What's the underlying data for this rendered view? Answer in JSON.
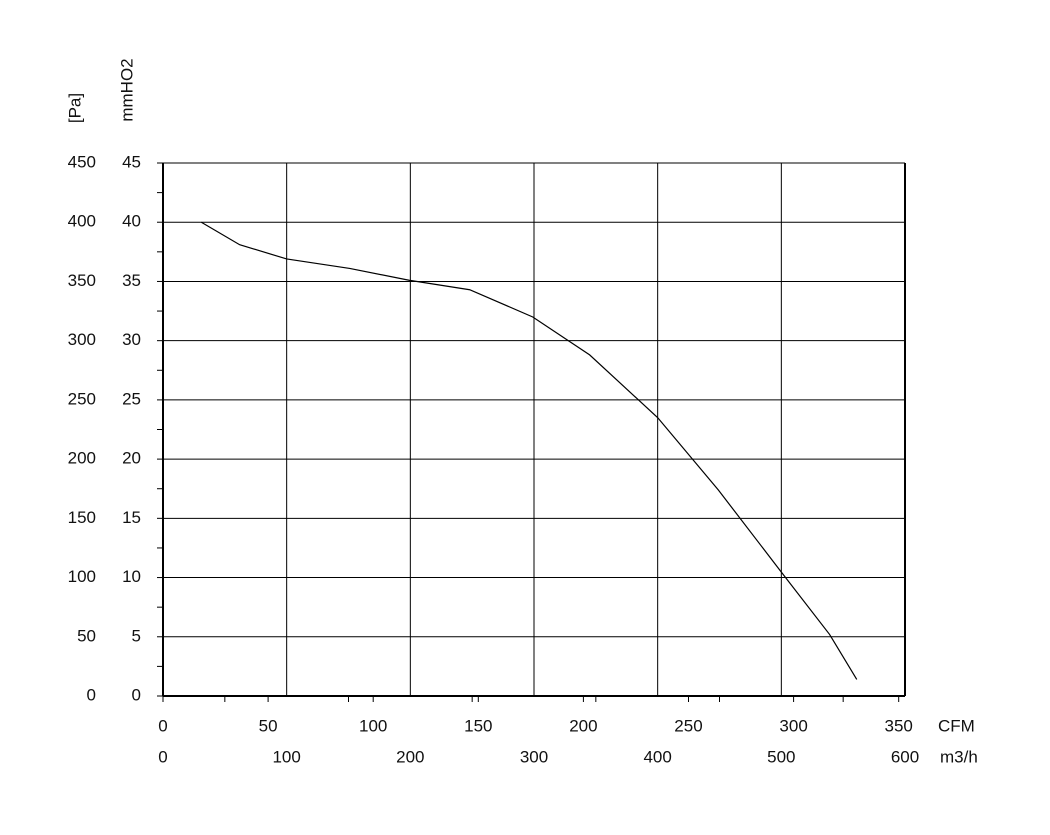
{
  "chart_data": {
    "type": "line",
    "y_label": "mmHO2",
    "y2_label": "[Pa]",
    "x_label": "m3/h",
    "x2_label": "CFM",
    "x": [
      31,
      62,
      100,
      151,
      199,
      248,
      299,
      345,
      400,
      449,
      499,
      539,
      561
    ],
    "series": [
      {
        "color": "#000000",
        "values": [
          40.0,
          38.1,
          36.9,
          36.1,
          35.1,
          34.3,
          32.0,
          28.8,
          23.5,
          17.4,
          10.6,
          5.2,
          1.4
        ]
      }
    ],
    "xlim": [
      0,
      600
    ],
    "xticks": [
      0,
      100,
      200,
      300,
      400,
      500,
      600
    ],
    "x2lim": [
      0,
      353
    ],
    "x2ticks": [
      0,
      50,
      100,
      150,
      200,
      250,
      300,
      350
    ],
    "ylim": [
      0,
      45
    ],
    "yticks": [
      0,
      5,
      10,
      15,
      20,
      25,
      30,
      35,
      40,
      45
    ],
    "y2lim": [
      0,
      450
    ],
    "y2ticks": [
      0,
      50,
      100,
      150,
      200,
      250,
      300,
      350,
      400,
      450
    ],
    "grid": true
  }
}
